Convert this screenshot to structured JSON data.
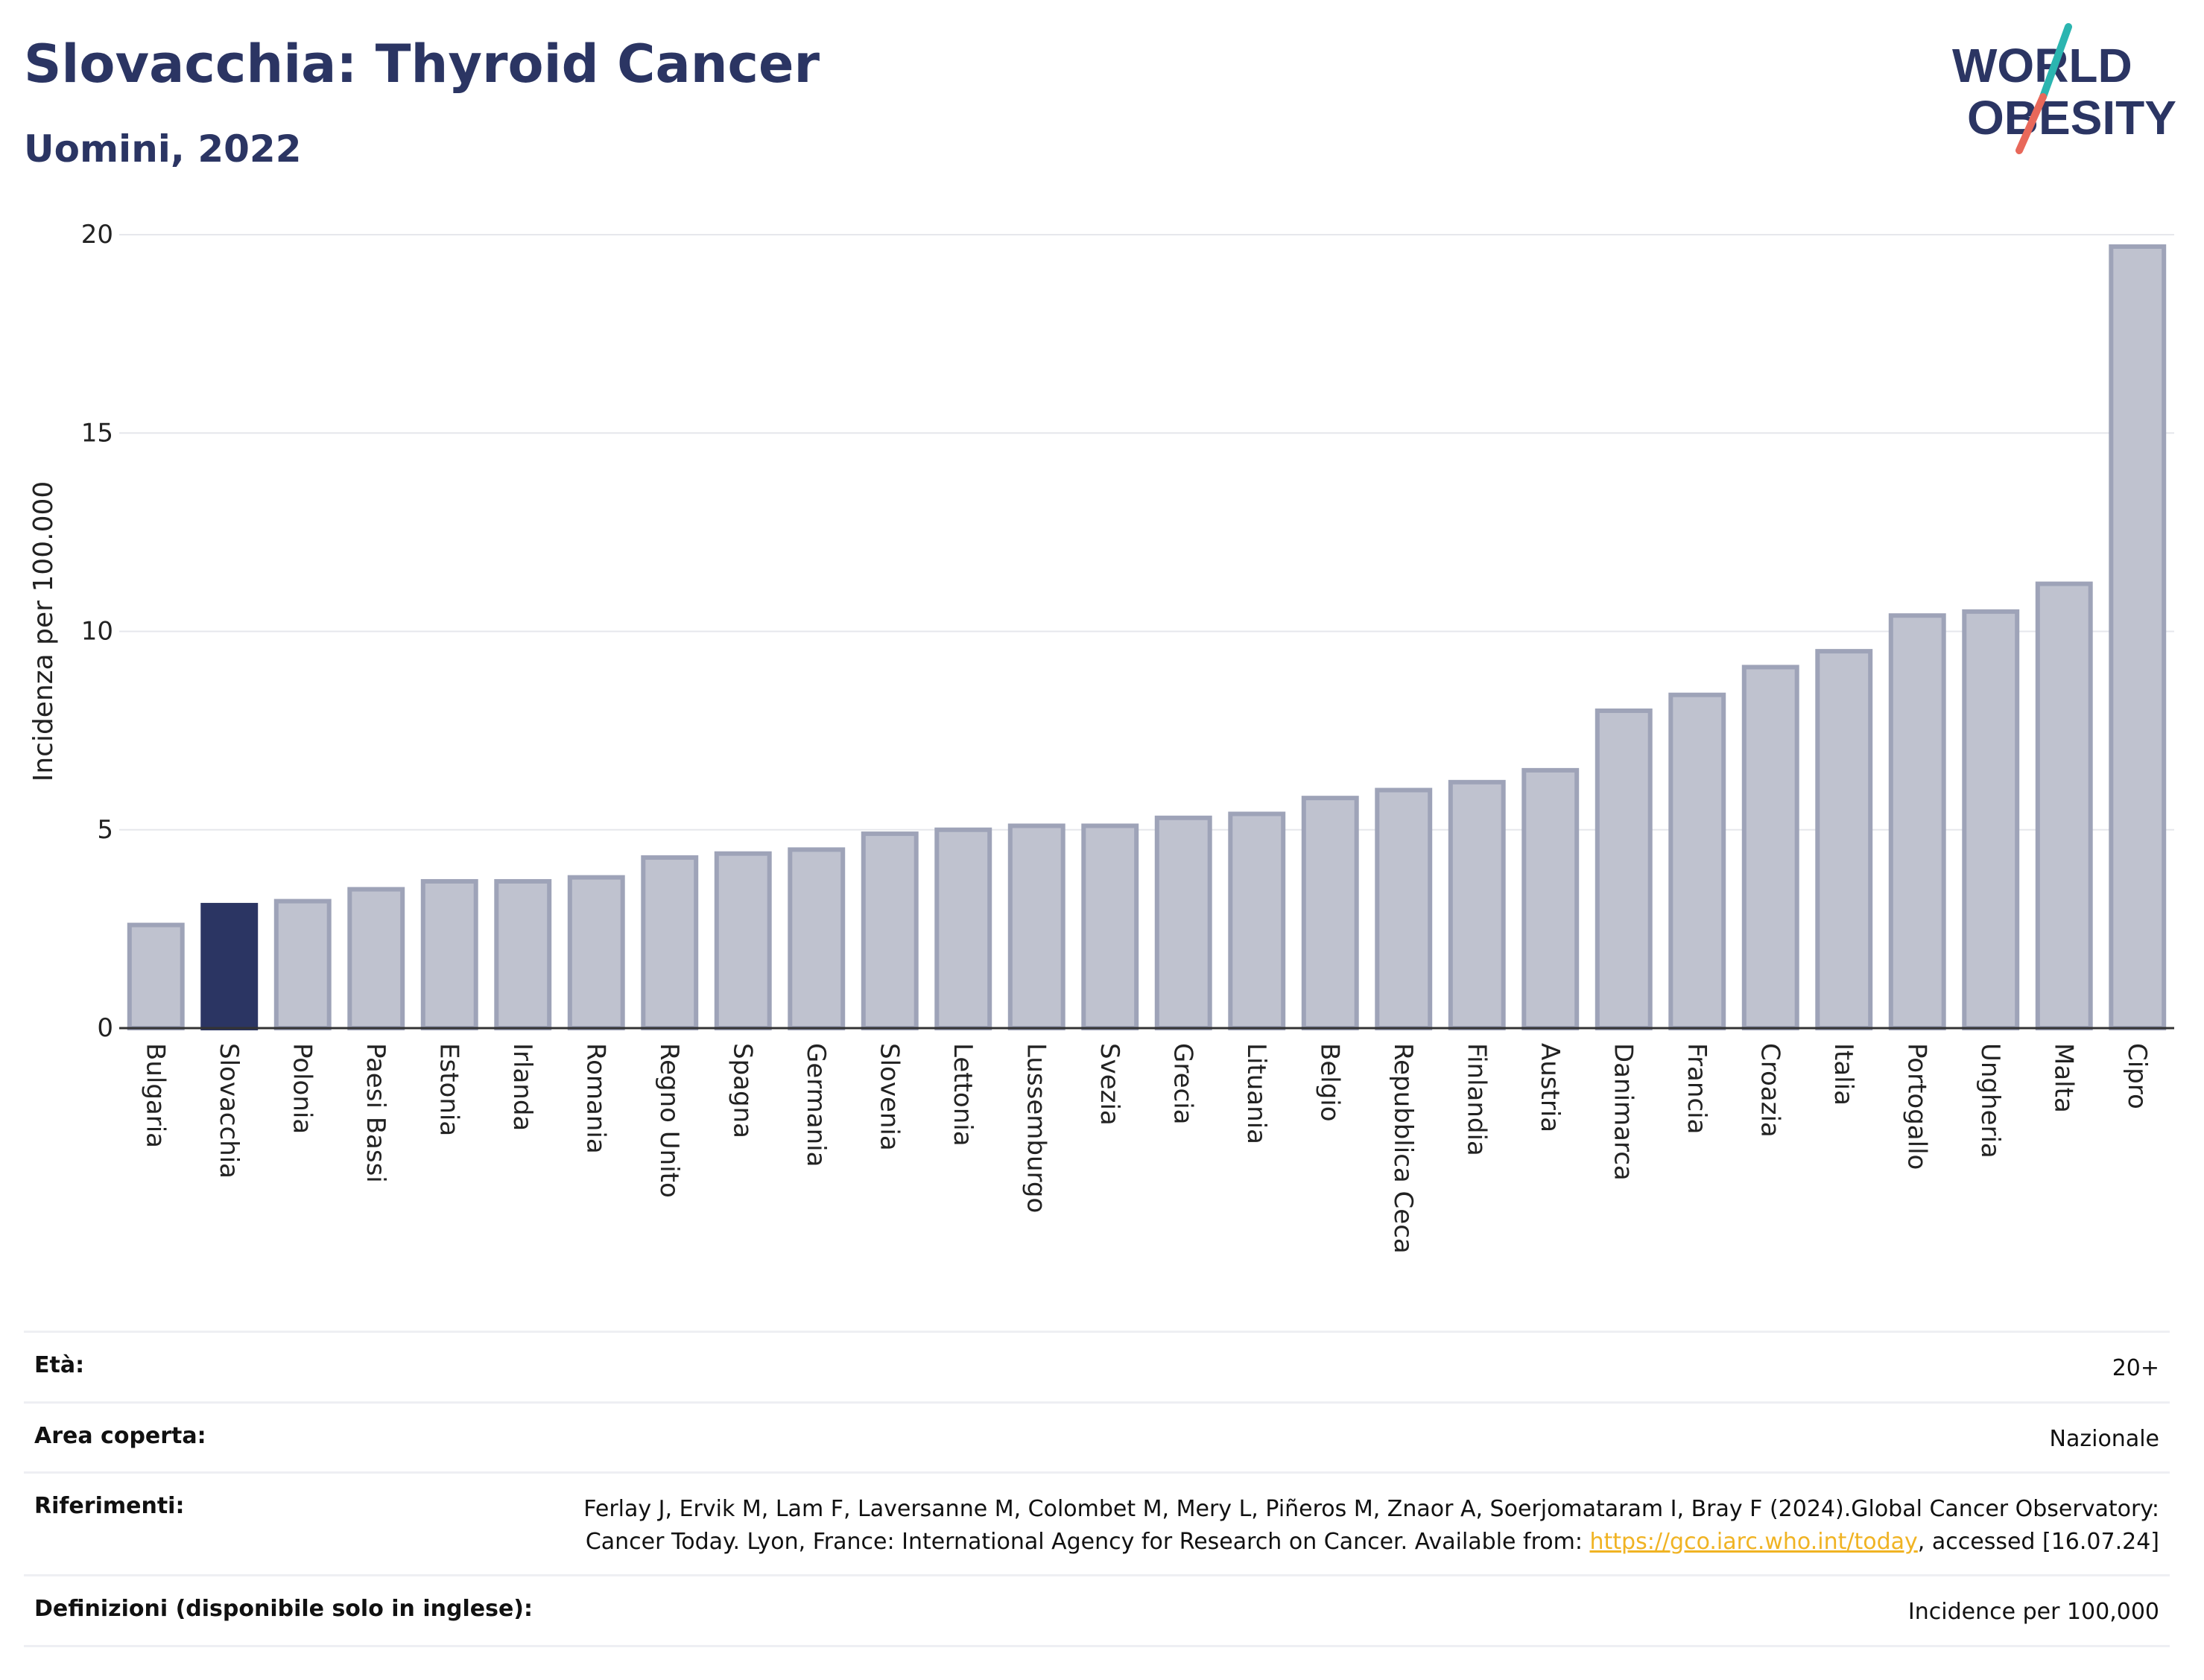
{
  "header": {
    "title": "Slovacchia: Thyroid Cancer",
    "subtitle": "Uomini, 2022"
  },
  "logo": {
    "line1": "WORLD",
    "line2": "OBESITY",
    "colors": {
      "text": "#2b3563",
      "slash_top": "#2bb5b0",
      "slash_bottom": "#e8685a"
    }
  },
  "colors": {
    "bar": "#bfc2cf",
    "bar_stroke": "#9ea3b8",
    "highlight": "#2b3563",
    "grid": "#e6e7ec",
    "axis": "#333333"
  },
  "chart_data": {
    "type": "bar",
    "ylabel": "Incidenza per 100.000",
    "ylim": [
      0,
      20
    ],
    "yticks": [
      0,
      5,
      10,
      15,
      20
    ],
    "grid": true,
    "highlight": "Slovacchia",
    "categories": [
      "Bulgaria",
      "Slovacchia",
      "Polonia",
      "Paesi Bassi",
      "Estonia",
      "Irlanda",
      "Romania",
      "Regno Unito",
      "Spagna",
      "Germania",
      "Slovenia",
      "Lettonia",
      "Lussemburgo",
      "Svezia",
      "Grecia",
      "Lituania",
      "Belgio",
      "Repubblica Ceca",
      "Finlandia",
      "Austria",
      "Danimarca",
      "Francia",
      "Croazia",
      "Italia",
      "Portogallo",
      "Ungheria",
      "Malta",
      "Cipro"
    ],
    "values": [
      2.6,
      3.1,
      3.2,
      3.5,
      3.7,
      3.7,
      3.8,
      4.3,
      4.4,
      4.5,
      4.9,
      5.0,
      5.1,
      5.1,
      5.3,
      5.4,
      5.8,
      6.0,
      6.2,
      6.5,
      8.0,
      8.4,
      9.1,
      9.5,
      10.4,
      10.5,
      11.2,
      19.7
    ]
  },
  "info": {
    "age_label": "Età:",
    "age_value": "20+",
    "area_label": "Area coperta:",
    "area_value": "Nazionale",
    "ref_label": "Riferimenti:",
    "ref_text_1": "Ferlay J, Ervik M, Lam F, Laversanne M, Colombet M, Mery L, Piñeros M, Znaor A, Soerjomataram I, Bray F (2024).Global Cancer Observatory: Cancer Today. Lyon, France: International Agency for Research on Cancer. Available from: ",
    "ref_link": "https://gco.iarc.who.int/today",
    "ref_text_2": ", accessed [16.07.24]",
    "def_label": "Definizioni (disponibile solo in inglese):",
    "def_value": "Incidence per 100,000"
  }
}
